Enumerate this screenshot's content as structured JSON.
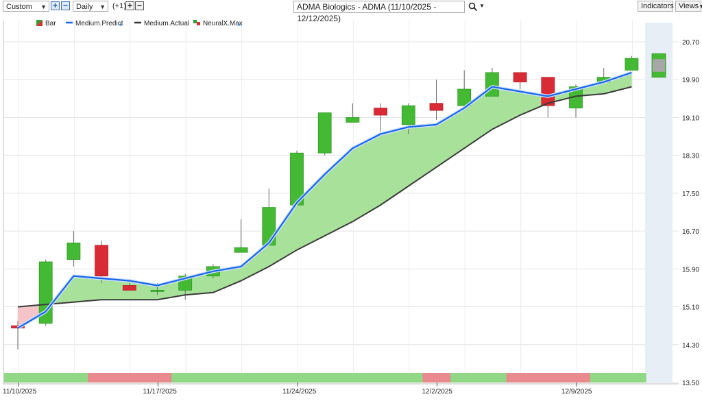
{
  "toolbar": {
    "range_select": "Custom",
    "interval_select": "Daily",
    "offset_label": "(+1)",
    "title": "ADMA Biologics - ADMA (11/10/2025 - 12/12/2025)",
    "indicators_label": "Indicators",
    "views_label": "Views"
  },
  "legend": [
    {
      "label": "Bar",
      "color": "#d32f2f"
    },
    {
      "label": "Medium.Predict",
      "color": "#1565e8"
    },
    {
      "label": "Medium.Actual",
      "color": "#333333"
    },
    {
      "label": "NeuralX.Max",
      "color": "#2e9e2e"
    }
  ],
  "colors": {
    "up": "#43b934",
    "down": "#d92b35",
    "predict": "#1565e8",
    "actual": "#3a3a3a",
    "fill_above": "#a8e29a",
    "fill_below": "#f4c4c8",
    "strip_green": "#90d885",
    "strip_red": "#e88a8e",
    "forecast_band": "#e8eef6"
  },
  "chart_data": {
    "type": "candlestick",
    "x": [
      "11/10/2025",
      "11/11/2025",
      "11/12/2025",
      "11/13/2025",
      "11/14/2025",
      "11/17/2025",
      "11/18/2025",
      "11/19/2025",
      "11/20/2025",
      "11/21/2025",
      "11/24/2025",
      "11/25/2025",
      "11/26/2025",
      "11/28/2025",
      "12/1/2025",
      "12/2/2025",
      "12/3/2025",
      "12/4/2025",
      "12/5/2025",
      "12/8/2025",
      "12/9/2025",
      "12/10/2025",
      "12/11/2025"
    ],
    "xtick_labels": [
      "11/10/2025",
      "11/17/2025",
      "11/24/2025",
      "12/2/2025",
      "12/9/2025"
    ],
    "ytick_labels": [
      "20.70",
      "19.90",
      "19.10",
      "18.30",
      "17.50",
      "16.70",
      "15.90",
      "15.10",
      "14.30",
      "13.50"
    ],
    "ylim": [
      13.5,
      21.0
    ],
    "ohlc": [
      {
        "o": 14.7,
        "h": 14.8,
        "l": 14.2,
        "c": 14.65
      },
      {
        "o": 14.75,
        "h": 16.1,
        "l": 14.7,
        "c": 16.05
      },
      {
        "o": 16.1,
        "h": 16.7,
        "l": 15.95,
        "c": 16.45
      },
      {
        "o": 16.4,
        "h": 16.5,
        "l": 15.6,
        "c": 15.75
      },
      {
        "o": 15.55,
        "h": 15.6,
        "l": 15.45,
        "c": 15.45
      },
      {
        "o": 15.45,
        "h": 15.6,
        "l": 15.35,
        "c": 15.45
      },
      {
        "o": 15.45,
        "h": 15.8,
        "l": 15.25,
        "c": 15.75
      },
      {
        "o": 15.75,
        "h": 16.0,
        "l": 15.7,
        "c": 15.95
      },
      {
        "o": 16.25,
        "h": 16.95,
        "l": 16.25,
        "c": 16.35
      },
      {
        "o": 16.4,
        "h": 17.6,
        "l": 16.4,
        "c": 17.2
      },
      {
        "o": 17.25,
        "h": 18.4,
        "l": 17.25,
        "c": 18.35
      },
      {
        "o": 18.35,
        "h": 19.2,
        "l": 18.3,
        "c": 19.2
      },
      {
        "o": 19.0,
        "h": 19.4,
        "l": 19.0,
        "c": 19.1
      },
      {
        "o": 19.3,
        "h": 19.4,
        "l": 18.8,
        "c": 19.15
      },
      {
        "o": 18.95,
        "h": 19.4,
        "l": 18.75,
        "c": 19.35
      },
      {
        "o": 19.4,
        "h": 19.9,
        "l": 19.05,
        "c": 19.25
      },
      {
        "o": 19.35,
        "h": 20.1,
        "l": 19.35,
        "c": 19.7
      },
      {
        "o": 19.55,
        "h": 20.15,
        "l": 19.55,
        "c": 20.05
      },
      {
        "o": 20.05,
        "h": 20.05,
        "l": 19.7,
        "c": 19.85
      },
      {
        "o": 19.95,
        "h": 19.95,
        "l": 19.1,
        "c": 19.35
      },
      {
        "o": 19.3,
        "h": 19.8,
        "l": 19.1,
        "c": 19.75
      },
      {
        "o": 19.85,
        "h": 20.15,
        "l": 19.85,
        "c": 19.95
      },
      {
        "o": 20.1,
        "h": 20.4,
        "l": 20.1,
        "c": 20.35
      }
    ],
    "forecast_bar": {
      "o": 19.95,
      "h": 20.45,
      "l": 19.95,
      "c": 20.45
    },
    "series": [
      {
        "name": "Medium.Predict",
        "values": [
          14.65,
          15.0,
          15.75,
          15.7,
          15.65,
          15.55,
          15.7,
          15.85,
          15.95,
          16.45,
          17.3,
          17.9,
          18.45,
          18.75,
          18.9,
          18.95,
          19.3,
          19.75,
          19.65,
          19.55,
          19.7,
          19.85,
          20.05
        ]
      },
      {
        "name": "Medium.Actual",
        "values": [
          15.1,
          15.15,
          15.2,
          15.25,
          15.25,
          15.25,
          15.35,
          15.4,
          15.65,
          15.95,
          16.3,
          16.6,
          16.9,
          17.25,
          17.65,
          18.05,
          18.45,
          18.85,
          19.15,
          19.4,
          19.55,
          19.6,
          19.75
        ]
      }
    ],
    "strip": [
      "green",
      "green",
      "green",
      "red",
      "red",
      "red",
      "green",
      "green",
      "green",
      "green",
      "green",
      "green",
      "green",
      "green",
      "green",
      "red",
      "green",
      "green",
      "red",
      "red",
      "red",
      "green",
      "green"
    ]
  }
}
